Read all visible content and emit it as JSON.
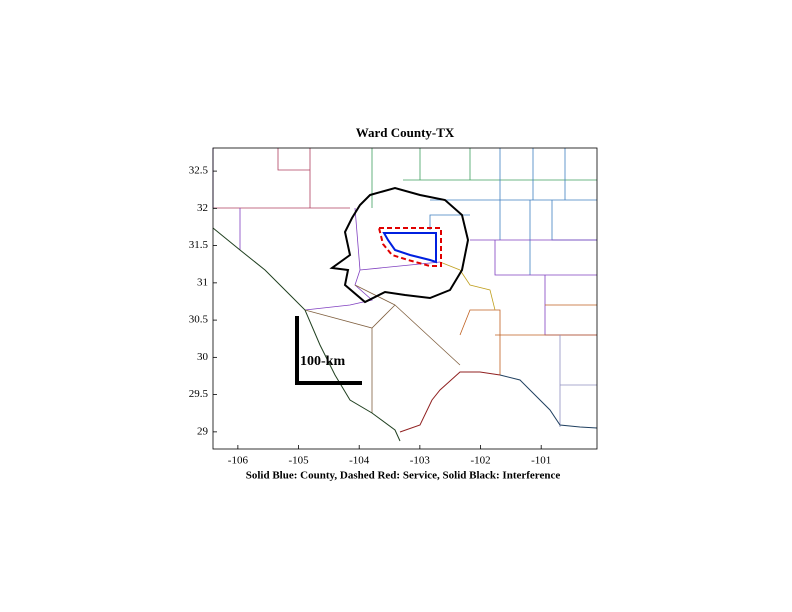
{
  "chart_data": {
    "type": "map",
    "title": "Ward County-TX",
    "xlabel": "Solid Blue: County, Dashed Red: Service, Solid Black: Interference",
    "scale_label": "100-km",
    "xlim": [
      -106.41,
      -100.08
    ],
    "ylim": [
      28.77,
      32.81
    ],
    "xticks": [
      -106,
      -105,
      -104,
      -103,
      -102,
      -101
    ],
    "yticks": [
      29,
      29.5,
      30,
      30.5,
      31,
      31.5,
      32,
      32.5
    ]
  }
}
